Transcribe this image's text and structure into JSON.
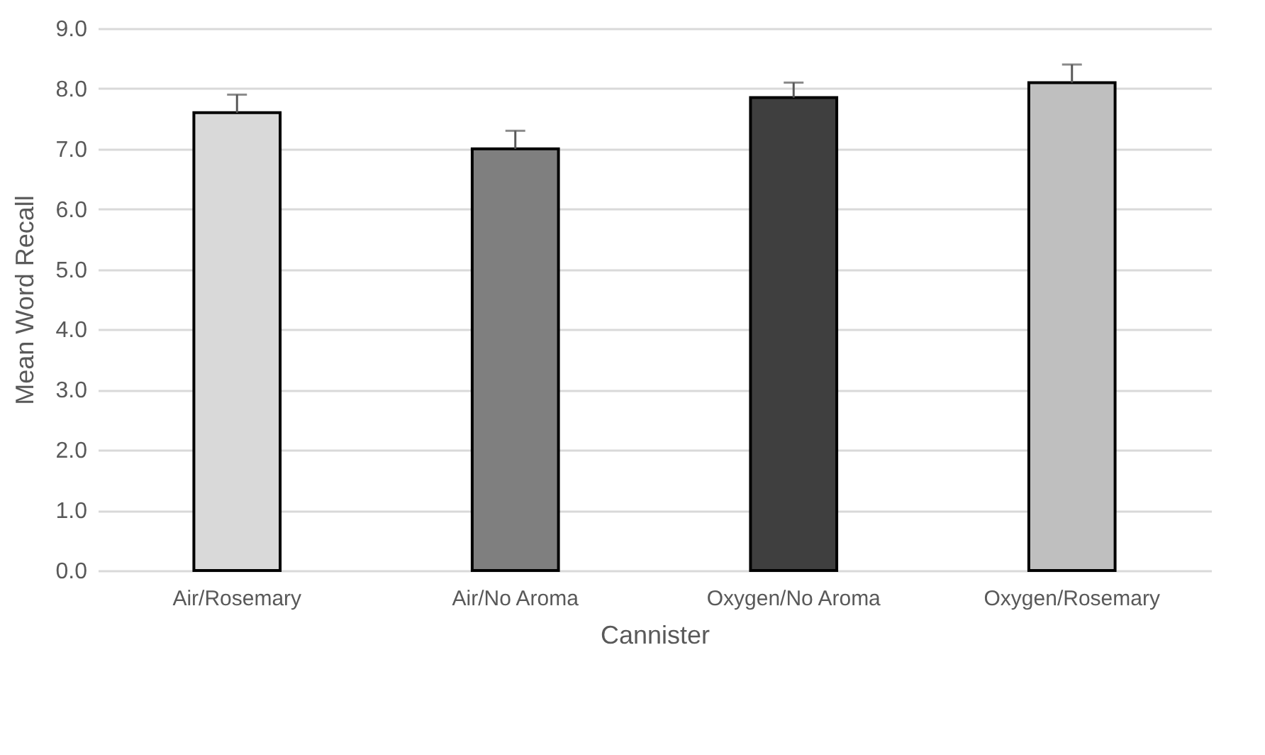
{
  "chart_data": {
    "type": "bar",
    "xlabel": "Cannister",
    "ylabel": "Mean Word Recall",
    "categories": [
      "Air/Rosemary",
      "Air/No Aroma",
      "Oxygen/No Aroma",
      "Oxygen/Rosemary"
    ],
    "values": [
      7.6,
      7.0,
      7.85,
      8.1
    ],
    "colors": [
      "#d9d9d9",
      "#7f7f7f",
      "#3f3f3f",
      "#bfbfbf"
    ],
    "errors": [
      [
        7.6,
        7.9
      ],
      [
        7.0,
        7.3
      ],
      [
        7.85,
        8.1
      ],
      [
        8.1,
        8.4
      ]
    ],
    "ylim": [
      0,
      9
    ],
    "yticks": [
      {
        "value": 0,
        "label": "0.0"
      },
      {
        "value": 1,
        "label": "1.0"
      },
      {
        "value": 2,
        "label": "2.0"
      },
      {
        "value": 3,
        "label": "3.0"
      },
      {
        "value": 4,
        "label": "4.0"
      },
      {
        "value": 5,
        "label": "5.0"
      },
      {
        "value": 6,
        "label": "6.0"
      },
      {
        "value": 7,
        "label": "7.0"
      },
      {
        "value": 8,
        "label": "8.0"
      },
      {
        "value": 9,
        "label": "9.0"
      }
    ],
    "grid": "y"
  }
}
